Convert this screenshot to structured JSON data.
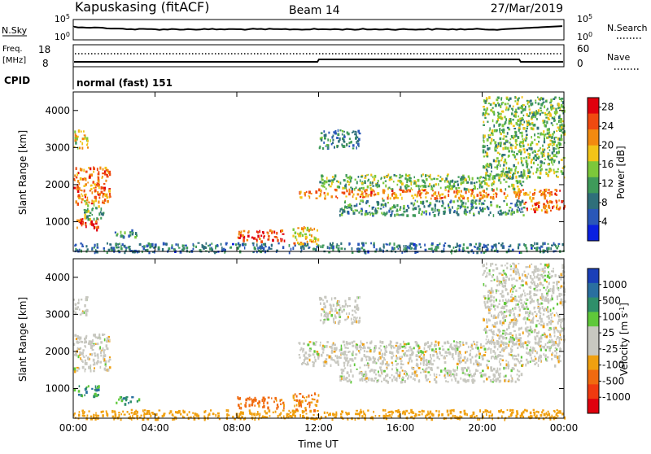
{
  "header": {
    "station": "Kapuskasing (fitACF)",
    "beam": "Beam 14",
    "date": "27/Mar/2019"
  },
  "strips": {
    "nsky_label": "N.Sky",
    "nsearch_label": "N.Search",
    "noise_ticks_left": [
      "10^5",
      "10^0"
    ],
    "noise_ticks_right": [
      "10^5",
      "10^0"
    ],
    "freq_label_line1": "Freq.",
    "freq_label_line2": "[MHz]",
    "freq_ticks": [
      "18",
      "8"
    ],
    "nave_label": "Nave",
    "nave_ticks": [
      "60",
      "0"
    ],
    "cpid_label": "CPID",
    "cpid_value": "normal (fast) 151"
  },
  "colors": {
    "power_scale": [
      "#0a20e0",
      "#2a57b8",
      "#2f6f7a",
      "#3f9a5a",
      "#7cc83a",
      "#f2c418",
      "#f28a10",
      "#f04a10",
      "#e0000e"
    ],
    "velocity_scale": [
      "#1a3fb8",
      "#2a6fa0",
      "#2f8f6a",
      "#5fc83a",
      "#c8c8c0",
      "#c8c8c0",
      "#f0a010",
      "#f06a10",
      "#f03a10",
      "#e0000e"
    ],
    "axis": "#000000"
  },
  "chart_data": [
    {
      "type": "heatmap",
      "panel": "power",
      "ylabel": "Slant Range [km]",
      "y_ticks": [
        "1000",
        "2000",
        "3000",
        "4000"
      ],
      "yrange": [
        200,
        4500
      ],
      "x_ticks": [
        "00:00",
        "04:00",
        "08:00",
        "12:00",
        "16:00",
        "20:00",
        "00:00"
      ],
      "xrange_hours": [
        0,
        24
      ],
      "colorbar_label": "Power [dB]",
      "colorbar_ticks": [
        "4",
        "8",
        "12",
        "16",
        "20",
        "24",
        "28"
      ],
      "colorbar_range": [
        0,
        30
      ],
      "regions": [
        {
          "t": [
            0.0,
            1.2
          ],
          "r": [
            800,
            1100
          ],
          "value": 26
        },
        {
          "t": [
            0.0,
            1.8
          ],
          "r": [
            1500,
            2500
          ],
          "value": 23
        },
        {
          "t": [
            0.0,
            0.7
          ],
          "r": [
            3000,
            3500
          ],
          "value": 18
        },
        {
          "t": [
            0.5,
            1.5
          ],
          "r": [
            1100,
            1600
          ],
          "value": 14
        },
        {
          "t": [
            2.0,
            3.2
          ],
          "r": [
            600,
            800
          ],
          "value": 10
        },
        {
          "t": [
            0.0,
            24.0
          ],
          "r": [
            200,
            450
          ],
          "value": 8
        },
        {
          "t": [
            8.0,
            10.3
          ],
          "r": [
            500,
            800
          ],
          "value": 25
        },
        {
          "t": [
            10.7,
            12.0
          ],
          "r": [
            400,
            900
          ],
          "value": 20
        },
        {
          "t": [
            11.0,
            23.8
          ],
          "r": [
            1650,
            1900
          ],
          "value": 22
        },
        {
          "t": [
            12.0,
            22.0
          ],
          "r": [
            1900,
            2300
          ],
          "value": 14
        },
        {
          "t": [
            13.0,
            22.0
          ],
          "r": [
            1200,
            1600
          ],
          "value": 10
        },
        {
          "t": [
            22.0,
            24.0
          ],
          "r": [
            1300,
            1600
          ],
          "value": 24
        },
        {
          "t": [
            12.0,
            14.0
          ],
          "r": [
            3000,
            3500
          ],
          "value": 9
        },
        {
          "t": [
            20.0,
            24.0
          ],
          "r": [
            2200,
            4400
          ],
          "value": 14
        }
      ]
    },
    {
      "type": "heatmap",
      "panel": "velocity",
      "ylabel": "Slant Range [km]",
      "y_ticks": [
        "1000",
        "2000",
        "3000",
        "4000"
      ],
      "yrange": [
        200,
        4500
      ],
      "x_ticks": [
        "00:00",
        "04:00",
        "08:00",
        "12:00",
        "16:00",
        "20:00",
        "00:00"
      ],
      "xlabel": "Time UT",
      "xrange_hours": [
        0,
        24
      ],
      "colorbar_label": "Velocity [m s^-1]",
      "colorbar_ticks": [
        "1000",
        "500",
        "100",
        "25",
        "-25",
        "-100",
        "-500",
        "-1000"
      ],
      "regions": [
        {
          "t": [
            0.0,
            1.8
          ],
          "r": [
            1500,
            2500
          ],
          "value": 0
        },
        {
          "t": [
            0.0,
            1.2
          ],
          "r": [
            800,
            1100
          ],
          "value": 80
        },
        {
          "t": [
            0.0,
            0.7
          ],
          "r": [
            3000,
            3500
          ],
          "value": 0
        },
        {
          "t": [
            2.0,
            3.2
          ],
          "r": [
            600,
            800
          ],
          "value": 80
        },
        {
          "t": [
            0.0,
            24.0
          ],
          "r": [
            200,
            450
          ],
          "value": -60
        },
        {
          "t": [
            8.0,
            10.3
          ],
          "r": [
            500,
            800
          ],
          "value": -120
        },
        {
          "t": [
            10.7,
            12.0
          ],
          "r": [
            400,
            900
          ],
          "value": -100
        },
        {
          "t": [
            11.0,
            23.8
          ],
          "r": [
            1650,
            2300
          ],
          "value": 0
        },
        {
          "t": [
            13.0,
            22.0
          ],
          "r": [
            1200,
            1600
          ],
          "value": 0
        },
        {
          "t": [
            12.0,
            14.0
          ],
          "r": [
            2800,
            3500
          ],
          "value": 0
        },
        {
          "t": [
            20.0,
            24.0
          ],
          "r": [
            2200,
            4400
          ],
          "value": 0
        }
      ]
    }
  ]
}
